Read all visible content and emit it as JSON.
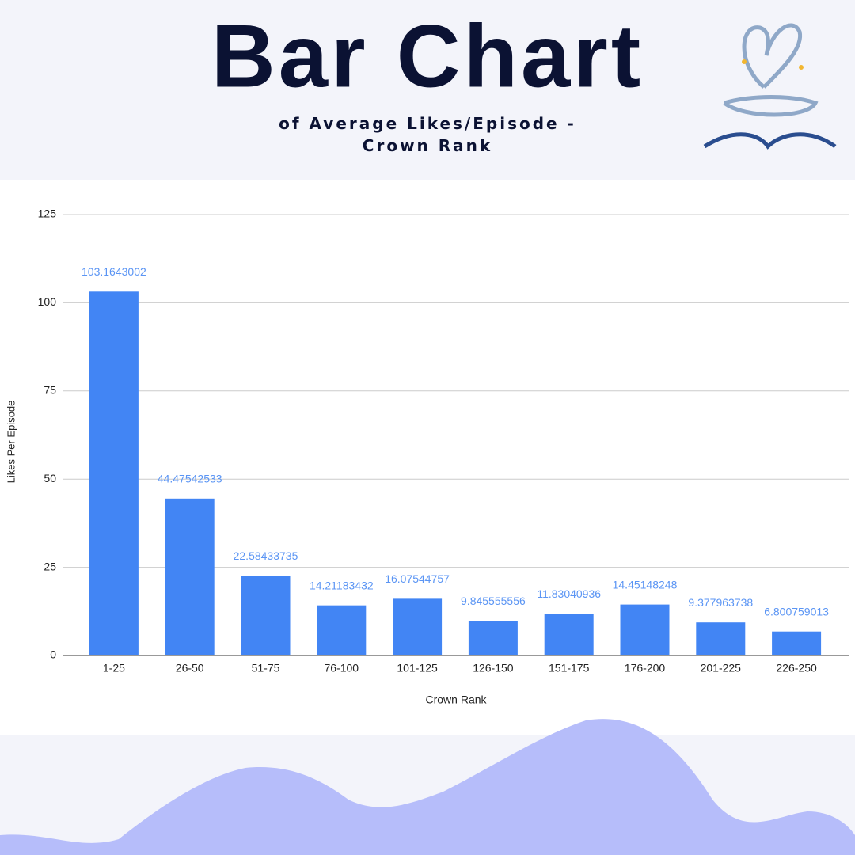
{
  "chart_data": {
    "type": "bar",
    "title": "Bar Chart",
    "subtitle": "of Average Likes/Episode - Crown Rank",
    "x_label": "Crown Rank",
    "y_label": "Likes Per Episode",
    "categories": [
      "1-25",
      "26-50",
      "51-75",
      "76-100",
      "101-125",
      "126-150",
      "151-175",
      "176-200",
      "201-225",
      "226-250"
    ],
    "values": [
      103.1643002,
      44.47542533,
      22.58433735,
      14.21183432,
      16.07544757,
      9.845555556,
      11.83040936,
      14.45148248,
      9.377963738,
      6.800759013
    ],
    "color": "#4285f4",
    "ylim": [
      0,
      125
    ],
    "yticks": [
      0,
      25,
      50,
      75,
      100,
      125
    ],
    "grid": true
  }
}
